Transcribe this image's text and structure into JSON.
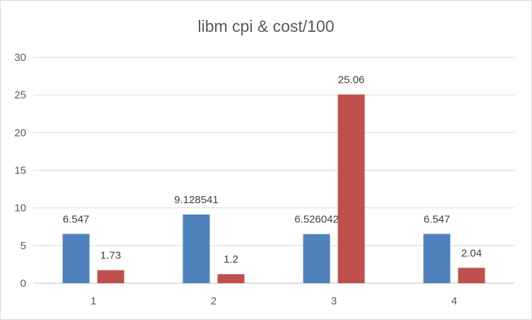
{
  "chart_data": {
    "type": "bar",
    "title": "libm cpi & cost/100",
    "categories": [
      "1",
      "2",
      "3",
      "4"
    ],
    "series": [
      {
        "values": [
          6.547,
          9.128541,
          6.526042,
          6.547
        ],
        "color": "#4f81bd"
      },
      {
        "values": [
          1.73,
          1.2,
          25.06,
          2.04
        ],
        "color": "#c0504d"
      }
    ],
    "data_labels": [
      [
        "6.547",
        "9.128541",
        "6.526042",
        "6.547"
      ],
      [
        "1.73",
        "1.2",
        "25.06",
        "2.04"
      ]
    ],
    "ylim": [
      0,
      30
    ],
    "yticks": [
      "0",
      "5",
      "10",
      "15",
      "20",
      "25",
      "30"
    ],
    "grid": true,
    "legend": "none"
  }
}
